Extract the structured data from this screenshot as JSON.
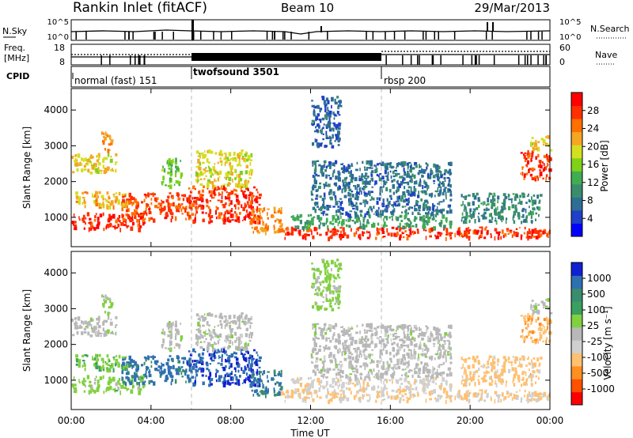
{
  "header": {
    "station": "Rankin Inlet (fitACF)",
    "beam": "Beam 10",
    "date": "29/Mar/2013"
  },
  "small_panels": {
    "nsky": {
      "label": "N.Sky",
      "ticks": [
        "10^5",
        "10^0"
      ]
    },
    "freq": {
      "label_line1": "Freq.",
      "label_line2": "[MHz]",
      "ticks": [
        "18",
        "8"
      ]
    },
    "cpid_label": "CPID",
    "nsearch": {
      "label": "N.Search",
      "ticks": [
        "10^5",
        "10^0"
      ]
    },
    "nave": {
      "label": "Nave",
      "ticks": [
        "60",
        "0"
      ]
    }
  },
  "modes": [
    {
      "name": "normal (fast) 151",
      "start_hour": 0
    },
    {
      "name": "twofsound 3501",
      "start_hour": 6
    },
    {
      "name": "rbsp 200",
      "start_hour": 15.6
    }
  ],
  "colors": {
    "power": [
      "#0000ff",
      "#2040c8",
      "#2e6e95",
      "#3a8c6e",
      "#41ad52",
      "#7fd11a",
      "#d4df20",
      "#f5a623",
      "#ff7000",
      "#ff3000",
      "#ff0000"
    ],
    "velocity": [
      "#ff0000",
      "#ff5000",
      "#ff8f1f",
      "#ffc070",
      "#d0d0d0",
      "#b8b8b8",
      "#80d040",
      "#3aa060",
      "#3a8c6e",
      "#2e70b0",
      "#1020d0"
    ]
  },
  "chart_data": [
    {
      "type": "heatmap",
      "panel": "power",
      "ylabel": "Slant Range [km]",
      "yticks": [
        "4000",
        "3000",
        "2000",
        "1000"
      ],
      "ylim": [
        180,
        4600
      ],
      "xlim": [
        0,
        24
      ],
      "xticks": [
        "00:00",
        "04:00",
        "08:00",
        "12:00",
        "16:00",
        "20:00",
        "00:00"
      ],
      "colorbar": {
        "label": "Power [dB]",
        "ticks": [
          "28",
          "24",
          "20",
          "16",
          "12",
          "8",
          "4"
        ],
        "range": [
          0,
          30
        ]
      },
      "regions": [
        {
          "t": [
            0,
            3.6
          ],
          "r": [
            700,
            1150
          ],
          "v": 27
        },
        {
          "t": [
            2.5,
            6.0
          ],
          "r": [
            950,
            1700
          ],
          "v": 25
        },
        {
          "t": [
            0.2,
            2.8
          ],
          "r": [
            1300,
            1750
          ],
          "v": 20
        },
        {
          "t": [
            0.0,
            2.2
          ],
          "r": [
            2250,
            2800
          ],
          "v": 18
        },
        {
          "t": [
            1.5,
            2.0
          ],
          "r": [
            2900,
            3400
          ],
          "v": 22
        },
        {
          "t": [
            4.5,
            5.5
          ],
          "r": [
            1900,
            2700
          ],
          "v": 14
        },
        {
          "t": [
            5.8,
            9.5
          ],
          "r": [
            900,
            1900
          ],
          "v": 26
        },
        {
          "t": [
            6.2,
            9.0
          ],
          "r": [
            1900,
            2900
          ],
          "v": 18
        },
        {
          "t": [
            9.0,
            10.5
          ],
          "r": [
            600,
            1300
          ],
          "v": 22
        },
        {
          "t": [
            10.5,
            24.0
          ],
          "r": [
            450,
            750
          ],
          "v": 26
        },
        {
          "t": [
            11.0,
            19.0
          ],
          "r": [
            750,
            1100
          ],
          "v": 11
        },
        {
          "t": [
            12.0,
            19.0
          ],
          "r": [
            1100,
            2600
          ],
          "v": 7
        },
        {
          "t": [
            19.5,
            23.5
          ],
          "r": [
            900,
            1700
          ],
          "v": 9
        },
        {
          "t": [
            22.5,
            24.0
          ],
          "r": [
            2100,
            2900
          ],
          "v": 26
        },
        {
          "t": [
            23.0,
            24.0
          ],
          "r": [
            2900,
            3300
          ],
          "v": 19
        },
        {
          "t": [
            12.0,
            13.5
          ],
          "r": [
            3000,
            4400
          ],
          "v": 6
        }
      ]
    },
    {
      "type": "heatmap",
      "panel": "velocity",
      "ylabel": "Slant Range [km]",
      "yticks": [
        "4000",
        "3000",
        "2000",
        "1000"
      ],
      "ylim": [
        180,
        4600
      ],
      "xlim": [
        0,
        24
      ],
      "xticks": [
        "00:00",
        "04:00",
        "08:00",
        "12:00",
        "16:00",
        "20:00",
        "00:00"
      ],
      "xlabel": "Time UT",
      "colorbar": {
        "label": "Velocity [m s⁻¹]",
        "ticks": [
          "1000",
          "500",
          "100",
          "25",
          "-25",
          "-100",
          "-500",
          "-1000"
        ],
        "range": [
          -1000,
          1000
        ]
      },
      "regions": [
        {
          "t": [
            0,
            3.6
          ],
          "r": [
            700,
            1150
          ],
          "v": 180
        },
        {
          "t": [
            2.5,
            6.0
          ],
          "r": [
            950,
            1700
          ],
          "v": 700
        },
        {
          "t": [
            0.2,
            2.8
          ],
          "r": [
            1300,
            1750
          ],
          "v": 250
        },
        {
          "t": [
            0.0,
            2.2
          ],
          "r": [
            2250,
            2800
          ],
          "v": 0
        },
        {
          "t": [
            1.5,
            2.0
          ],
          "r": [
            2900,
            3400
          ],
          "v": 120
        },
        {
          "t": [
            4.5,
            5.5
          ],
          "r": [
            1900,
            2700
          ],
          "v": 10
        },
        {
          "t": [
            5.8,
            9.5
          ],
          "r": [
            900,
            1900
          ],
          "v": 800
        },
        {
          "t": [
            6.2,
            9.0
          ],
          "r": [
            1900,
            2900
          ],
          "v": 0
        },
        {
          "t": [
            9.0,
            10.5
          ],
          "r": [
            600,
            1300
          ],
          "v": 650
        },
        {
          "t": [
            10.5,
            24.0
          ],
          "r": [
            450,
            750
          ],
          "v": -300
        },
        {
          "t": [
            11.0,
            19.0
          ],
          "r": [
            750,
            1100
          ],
          "v": -220
        },
        {
          "t": [
            12.0,
            19.0
          ],
          "r": [
            1100,
            2600
          ],
          "v": -5
        },
        {
          "t": [
            19.5,
            23.5
          ],
          "r": [
            900,
            1700
          ],
          "v": -350
        },
        {
          "t": [
            22.5,
            24.0
          ],
          "r": [
            2100,
            2900
          ],
          "v": -400
        },
        {
          "t": [
            23.0,
            24.0
          ],
          "r": [
            2900,
            3300
          ],
          "v": 0
        },
        {
          "t": [
            12.0,
            13.5
          ],
          "r": [
            3000,
            4400
          ],
          "v": 150
        }
      ]
    }
  ]
}
